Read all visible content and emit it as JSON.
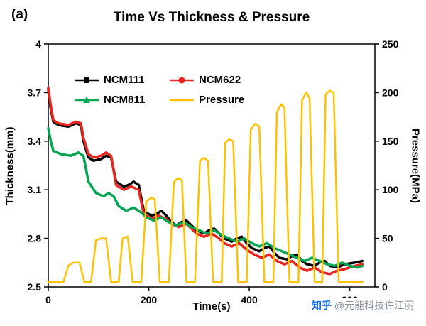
{
  "figure_label": "(a)",
  "title": "Time Vs Thickness & Pressure",
  "watermark": {
    "brand": "知乎",
    "handle": "@元能科技许江丽"
  },
  "chart_data": {
    "type": "line",
    "title": "Time Vs Thickness & Pressure",
    "xlabel": "Time(s)",
    "ylabel_left": "Thickness(mm)",
    "ylabel_right": "Pressure(MPa)",
    "xlim": [
      0,
      650
    ],
    "x_ticks": [
      0,
      200,
      400,
      600
    ],
    "ylim_left": [
      2.5,
      4
    ],
    "y_ticks_left": [
      4,
      3.7,
      3.4,
      3.1,
      2.8,
      2.5
    ],
    "ylim_right": [
      0,
      250
    ],
    "y_ticks_right": [
      250,
      200,
      150,
      100,
      50,
      0
    ],
    "grid": false,
    "legend_position": "inside-top-left",
    "series": [
      {
        "name": "NCM111",
        "axis": "left",
        "color": "#000000",
        "marker": "square",
        "width": 3.5,
        "points": [
          [
            0,
            3.72
          ],
          [
            5,
            3.6
          ],
          [
            10,
            3.52
          ],
          [
            20,
            3.5
          ],
          [
            40,
            3.49
          ],
          [
            55,
            3.51
          ],
          [
            65,
            3.5
          ],
          [
            70,
            3.4
          ],
          [
            80,
            3.3
          ],
          [
            90,
            3.28
          ],
          [
            105,
            3.29
          ],
          [
            115,
            3.31
          ],
          [
            125,
            3.3
          ],
          [
            135,
            3.15
          ],
          [
            150,
            3.12
          ],
          [
            160,
            3.13
          ],
          [
            170,
            3.15
          ],
          [
            180,
            3.13
          ],
          [
            190,
            2.97
          ],
          [
            205,
            2.94
          ],
          [
            215,
            2.95
          ],
          [
            225,
            2.97
          ],
          [
            235,
            2.94
          ],
          [
            245,
            2.9
          ],
          [
            255,
            2.88
          ],
          [
            265,
            2.9
          ],
          [
            275,
            2.91
          ],
          [
            285,
            2.88
          ],
          [
            295,
            2.85
          ],
          [
            310,
            2.83
          ],
          [
            320,
            2.85
          ],
          [
            330,
            2.86
          ],
          [
            340,
            2.83
          ],
          [
            350,
            2.8
          ],
          [
            365,
            2.78
          ],
          [
            375,
            2.8
          ],
          [
            385,
            2.81
          ],
          [
            395,
            2.77
          ],
          [
            405,
            2.74
          ],
          [
            420,
            2.72
          ],
          [
            430,
            2.74
          ],
          [
            440,
            2.75
          ],
          [
            450,
            2.71
          ],
          [
            460,
            2.68
          ],
          [
            475,
            2.67
          ],
          [
            485,
            2.69
          ],
          [
            495,
            2.7
          ],
          [
            505,
            2.66
          ],
          [
            515,
            2.64
          ],
          [
            530,
            2.63
          ],
          [
            540,
            2.65
          ],
          [
            550,
            2.66
          ],
          [
            560,
            2.63
          ],
          [
            575,
            2.62
          ],
          [
            590,
            2.64
          ],
          [
            610,
            2.65
          ],
          [
            625,
            2.66
          ]
        ]
      },
      {
        "name": "NCM622",
        "axis": "left",
        "color": "#e8251f",
        "marker": "circle",
        "width": 3.5,
        "points": [
          [
            0,
            3.73
          ],
          [
            5,
            3.62
          ],
          [
            10,
            3.53
          ],
          [
            20,
            3.51
          ],
          [
            40,
            3.5
          ],
          [
            55,
            3.52
          ],
          [
            65,
            3.51
          ],
          [
            70,
            3.42
          ],
          [
            80,
            3.32
          ],
          [
            90,
            3.3
          ],
          [
            105,
            3.31
          ],
          [
            115,
            3.33
          ],
          [
            125,
            3.31
          ],
          [
            135,
            3.13
          ],
          [
            150,
            3.1
          ],
          [
            165,
            3.12
          ],
          [
            180,
            3.1
          ],
          [
            190,
            2.95
          ],
          [
            205,
            2.92
          ],
          [
            220,
            2.94
          ],
          [
            235,
            2.92
          ],
          [
            245,
            2.89
          ],
          [
            260,
            2.87
          ],
          [
            275,
            2.89
          ],
          [
            285,
            2.86
          ],
          [
            295,
            2.83
          ],
          [
            310,
            2.81
          ],
          [
            325,
            2.83
          ],
          [
            340,
            2.8
          ],
          [
            350,
            2.77
          ],
          [
            365,
            2.75
          ],
          [
            380,
            2.77
          ],
          [
            395,
            2.73
          ],
          [
            410,
            2.7
          ],
          [
            425,
            2.68
          ],
          [
            440,
            2.7
          ],
          [
            455,
            2.66
          ],
          [
            470,
            2.64
          ],
          [
            485,
            2.66
          ],
          [
            500,
            2.62
          ],
          [
            515,
            2.6
          ],
          [
            530,
            2.62
          ],
          [
            545,
            2.59
          ],
          [
            560,
            2.58
          ],
          [
            575,
            2.6
          ],
          [
            590,
            2.61
          ],
          [
            610,
            2.63
          ],
          [
            625,
            2.64
          ]
        ]
      },
      {
        "name": "NCM811",
        "axis": "left",
        "color": "#00a651",
        "marker": "triangle",
        "width": 3.5,
        "points": [
          [
            0,
            3.48
          ],
          [
            5,
            3.4
          ],
          [
            10,
            3.34
          ],
          [
            25,
            3.32
          ],
          [
            45,
            3.31
          ],
          [
            60,
            3.33
          ],
          [
            70,
            3.31
          ],
          [
            80,
            3.15
          ],
          [
            95,
            3.08
          ],
          [
            110,
            3.06
          ],
          [
            120,
            3.08
          ],
          [
            130,
            3.06
          ],
          [
            140,
            3.0
          ],
          [
            155,
            2.97
          ],
          [
            170,
            2.99
          ],
          [
            185,
            2.96
          ],
          [
            195,
            2.93
          ],
          [
            210,
            2.91
          ],
          [
            225,
            2.93
          ],
          [
            240,
            2.9
          ],
          [
            255,
            2.88
          ],
          [
            270,
            2.9
          ],
          [
            285,
            2.87
          ],
          [
            300,
            2.85
          ],
          [
            315,
            2.83
          ],
          [
            330,
            2.85
          ],
          [
            345,
            2.82
          ],
          [
            360,
            2.8
          ],
          [
            375,
            2.78
          ],
          [
            390,
            2.8
          ],
          [
            405,
            2.77
          ],
          [
            420,
            2.75
          ],
          [
            435,
            2.77
          ],
          [
            450,
            2.74
          ],
          [
            465,
            2.72
          ],
          [
            480,
            2.7
          ],
          [
            495,
            2.68
          ],
          [
            510,
            2.66
          ],
          [
            525,
            2.68
          ],
          [
            540,
            2.66
          ],
          [
            555,
            2.64
          ],
          [
            570,
            2.63
          ],
          [
            585,
            2.65
          ],
          [
            600,
            2.63
          ],
          [
            615,
            2.62
          ],
          [
            625,
            2.63
          ]
        ]
      },
      {
        "name": "Pressure",
        "axis": "right",
        "color": "#ffc000",
        "marker": "none",
        "width": 2.5,
        "points": [
          [
            0,
            5
          ],
          [
            30,
            5
          ],
          [
            40,
            22
          ],
          [
            50,
            25
          ],
          [
            62,
            25
          ],
          [
            72,
            5
          ],
          [
            85,
            5
          ],
          [
            95,
            48
          ],
          [
            105,
            50
          ],
          [
            115,
            50
          ],
          [
            125,
            5
          ],
          [
            140,
            5
          ],
          [
            148,
            50
          ],
          [
            158,
            52
          ],
          [
            168,
            5
          ],
          [
            185,
            5
          ],
          [
            195,
            88
          ],
          [
            205,
            92
          ],
          [
            212,
            90
          ],
          [
            222,
            5
          ],
          [
            240,
            5
          ],
          [
            250,
            108
          ],
          [
            258,
            112
          ],
          [
            266,
            110
          ],
          [
            275,
            5
          ],
          [
            292,
            5
          ],
          [
            302,
            130
          ],
          [
            310,
            133
          ],
          [
            318,
            130
          ],
          [
            328,
            5
          ],
          [
            345,
            5
          ],
          [
            352,
            148
          ],
          [
            360,
            152
          ],
          [
            368,
            150
          ],
          [
            378,
            5
          ],
          [
            395,
            5
          ],
          [
            403,
            162
          ],
          [
            412,
            168
          ],
          [
            420,
            165
          ],
          [
            430,
            5
          ],
          [
            448,
            5
          ],
          [
            455,
            180
          ],
          [
            463,
            188
          ],
          [
            470,
            185
          ],
          [
            480,
            5
          ],
          [
            498,
            5
          ],
          [
            505,
            192
          ],
          [
            513,
            200
          ],
          [
            520,
            195
          ],
          [
            530,
            5
          ],
          [
            545,
            5
          ],
          [
            552,
            198
          ],
          [
            560,
            202
          ],
          [
            568,
            200
          ],
          [
            578,
            5
          ],
          [
            595,
            5
          ],
          [
            625,
            5
          ]
        ]
      }
    ]
  }
}
